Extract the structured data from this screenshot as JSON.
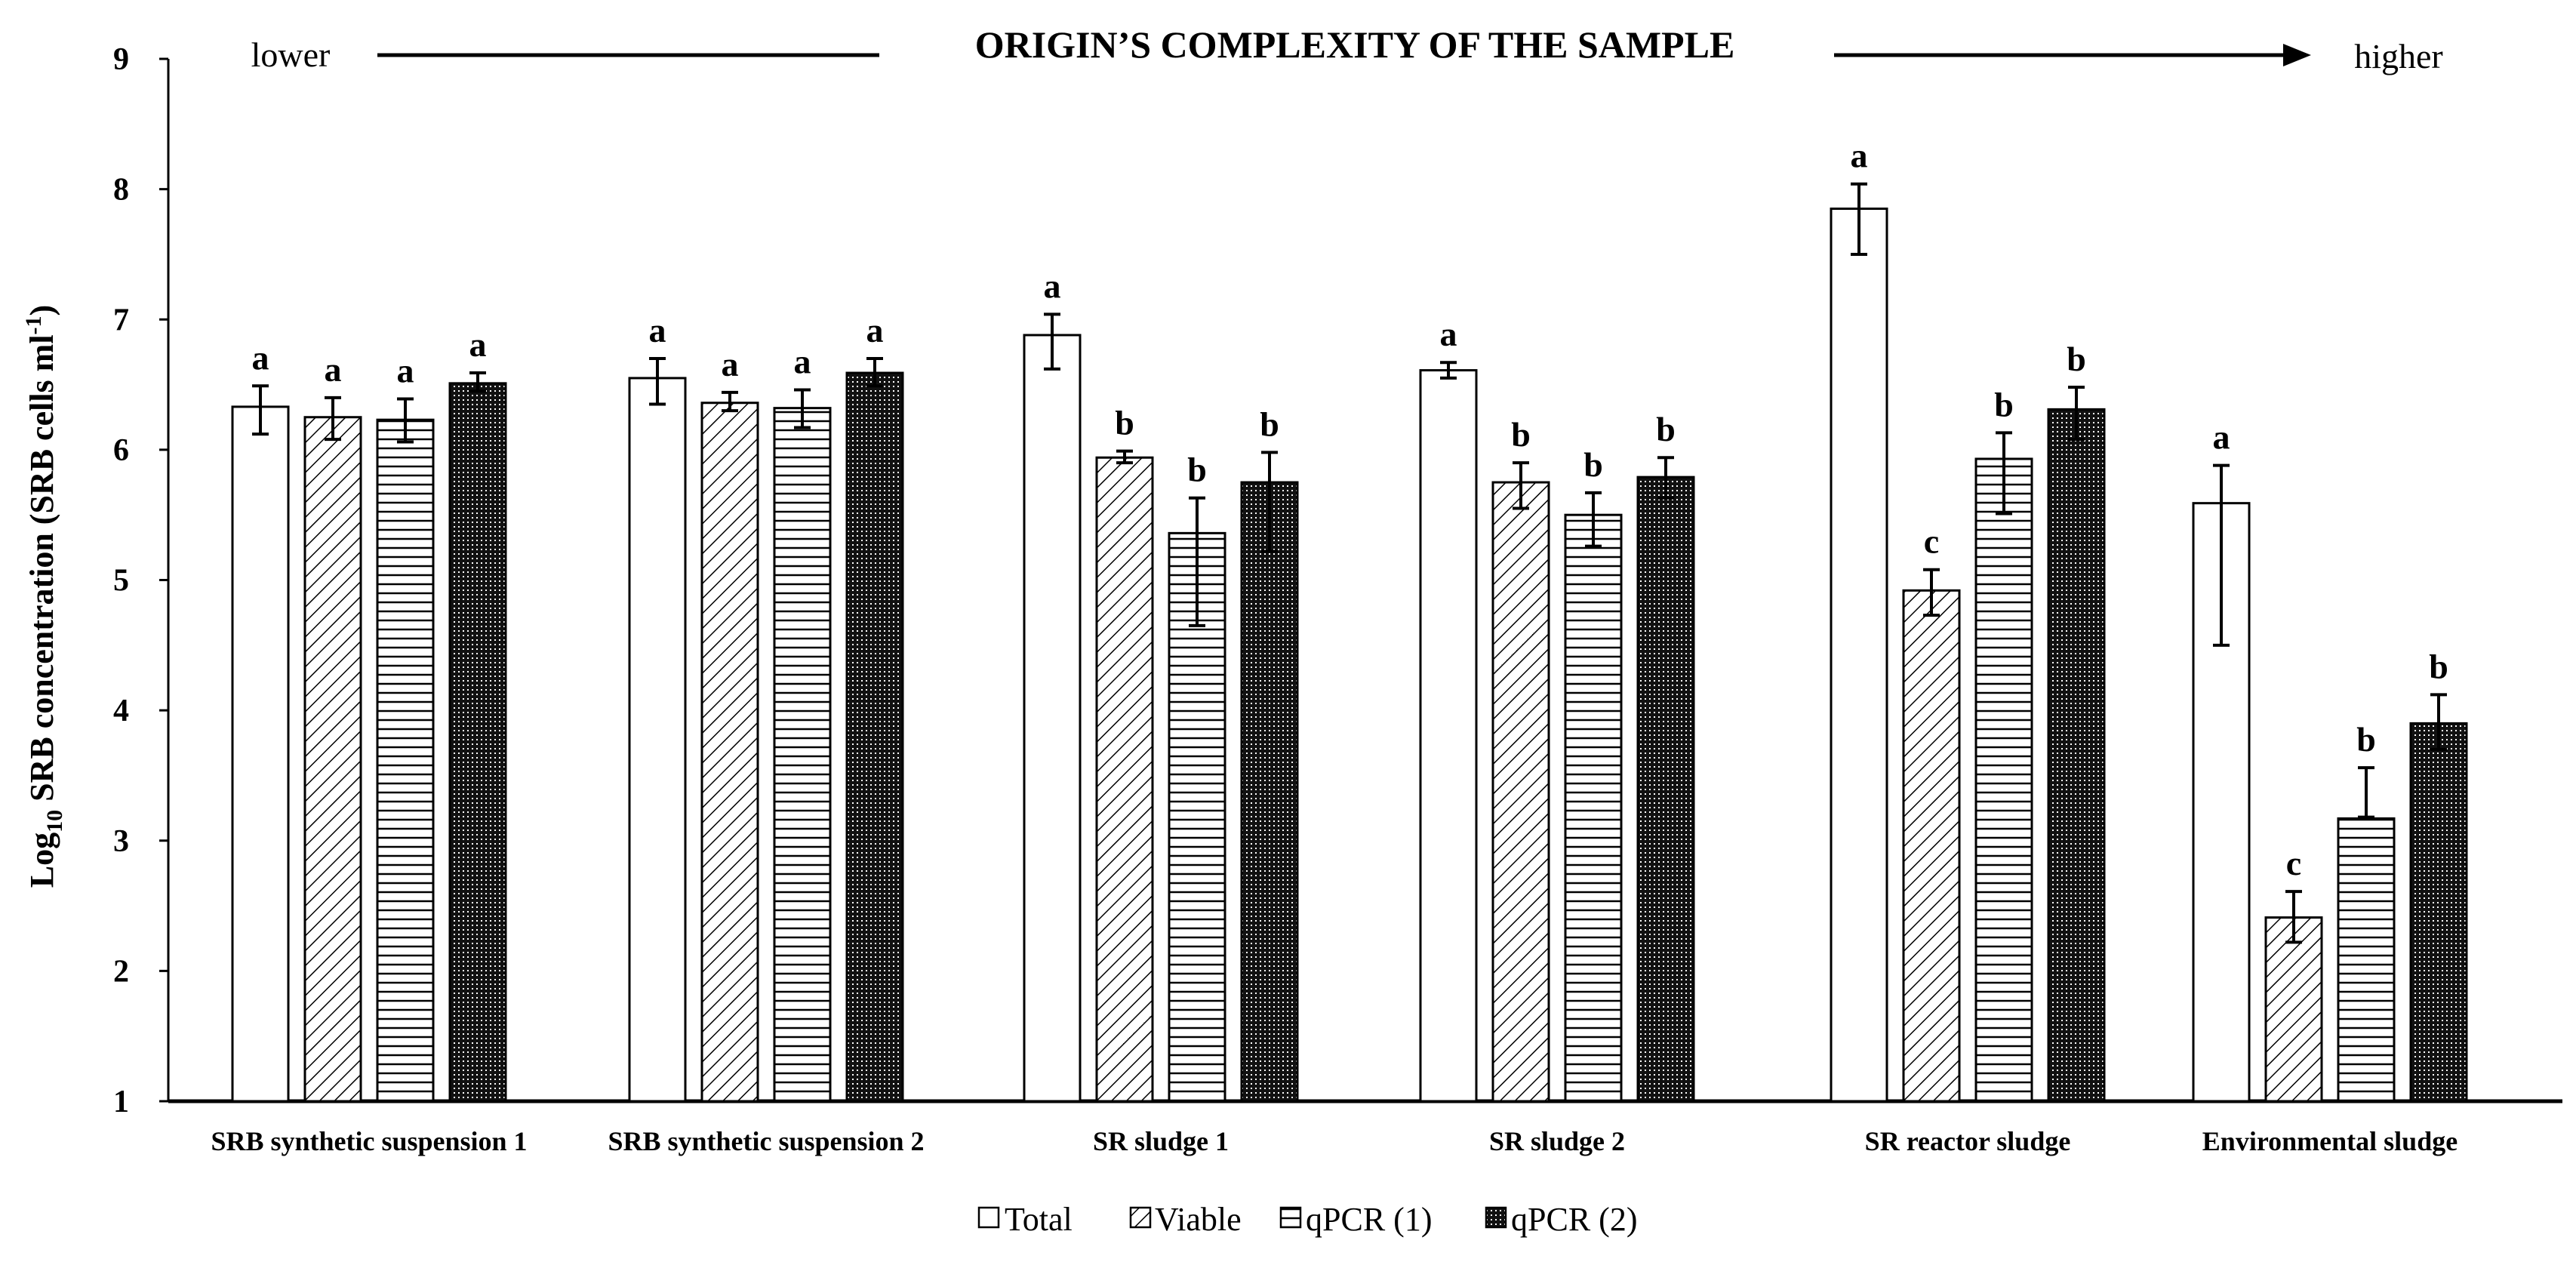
{
  "chart_data": {
    "type": "bar",
    "ylabel_main": "Log",
    "ylabel_sub": "10",
    "ylabel_rest": " SRB concentration (SRB cells ml",
    "ylabel_sup": "-1",
    "ylabel_end": ")",
    "ylim": [
      1,
      9
    ],
    "yticks": [
      1,
      2,
      3,
      4,
      5,
      6,
      7,
      8,
      9
    ],
    "banner": {
      "title": "ORIGIN’S COMPLEXITY OF THE SAMPLE",
      "left_word": "lower",
      "right_word": "higher"
    },
    "categories": [
      "SRB synthetic suspension 1",
      "SRB synthetic suspension 2",
      "SR sludge 1",
      "SR sludge 2",
      "SR reactor sludge",
      "Environmental sludge"
    ],
    "series": [
      {
        "name": "Total",
        "pattern": "white",
        "values": [
          6.33,
          6.55,
          6.88,
          6.61,
          7.85,
          5.59
        ],
        "err_low": [
          6.12,
          6.35,
          6.62,
          6.55,
          7.5,
          4.5
        ],
        "err_high": [
          6.49,
          6.7,
          7.04,
          6.67,
          8.04,
          5.88
        ],
        "letters": [
          "a",
          "a",
          "a",
          "a",
          "a",
          "a"
        ]
      },
      {
        "name": "Viable",
        "pattern": "diagonal",
        "values": [
          6.25,
          6.36,
          5.94,
          5.75,
          4.92,
          2.41
        ],
        "err_low": [
          6.08,
          6.3,
          5.9,
          5.55,
          4.73,
          2.22
        ],
        "err_high": [
          6.4,
          6.44,
          5.99,
          5.9,
          5.08,
          2.61
        ],
        "letters": [
          "a",
          "a",
          "b",
          "b",
          "c",
          "c"
        ]
      },
      {
        "name": "qPCR (1)",
        "pattern": "horizontal",
        "values": [
          6.23,
          6.32,
          5.36,
          5.5,
          5.93,
          3.17
        ],
        "err_low": [
          6.06,
          6.17,
          4.65,
          5.26,
          5.51,
          3.18
        ],
        "err_high": [
          6.39,
          6.46,
          5.63,
          5.67,
          6.13,
          3.56
        ],
        "letters": [
          "a",
          "a",
          "b",
          "b",
          "b",
          "b"
        ]
      },
      {
        "name": "qPCR (2)",
        "pattern": "dotted",
        "values": [
          6.51,
          6.59,
          5.75,
          5.79,
          6.31,
          3.9
        ],
        "err_low": [
          6.45,
          6.49,
          5.22,
          5.63,
          6.08,
          3.7
        ],
        "err_high": [
          6.59,
          6.7,
          5.98,
          5.94,
          6.48,
          4.12
        ],
        "letters": [
          "a",
          "a",
          "b",
          "b",
          "b",
          "b"
        ]
      }
    ]
  }
}
